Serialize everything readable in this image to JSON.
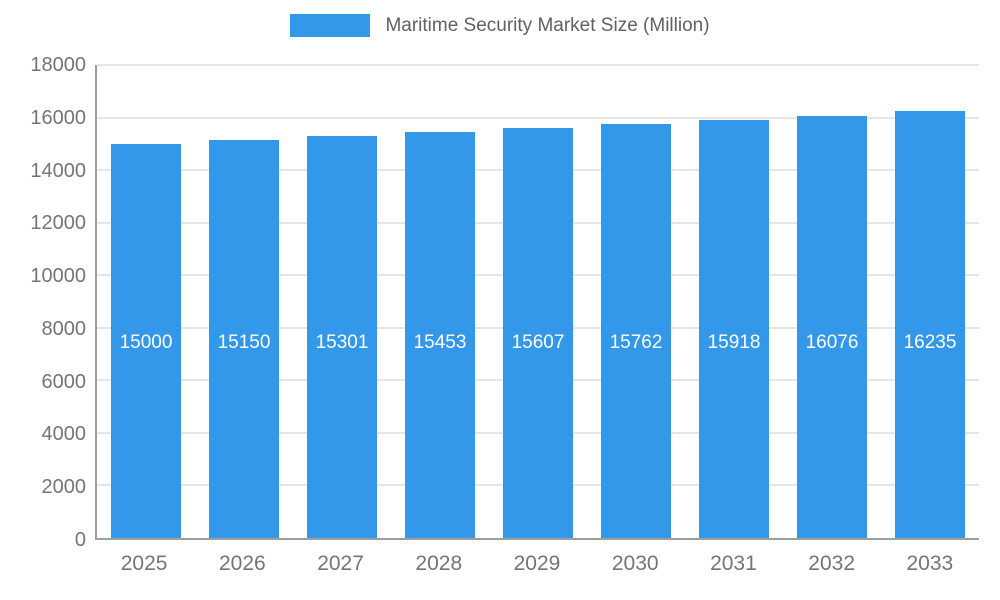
{
  "chart_data": {
    "type": "bar",
    "title": "Maritime Security Market Size (Million)",
    "categories": [
      "2025",
      "2026",
      "2027",
      "2028",
      "2029",
      "2030",
      "2031",
      "2032",
      "2033"
    ],
    "values": [
      15000,
      15150,
      15301,
      15453,
      15607,
      15762,
      15918,
      16076,
      16235
    ],
    "yticks": [
      0,
      2000,
      4000,
      6000,
      8000,
      10000,
      12000,
      14000,
      16000,
      18000
    ],
    "ylim": [
      0,
      18000
    ],
    "grid": "horizontal",
    "legend_position": "top",
    "bar_color": "#3398ea",
    "value_label_color": "#ffffff",
    "axis_text_color": "#757575",
    "title_color": "#616161",
    "gridline_color": "#e6e6e6",
    "axis_line_color": "#9e9e9e"
  }
}
